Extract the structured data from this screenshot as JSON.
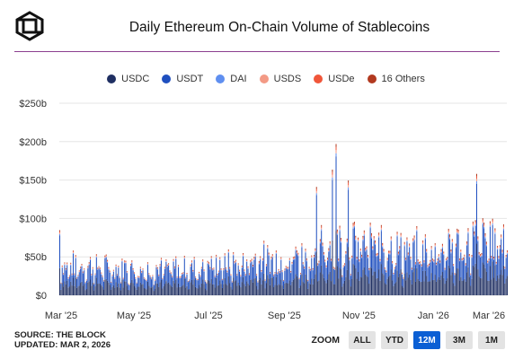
{
  "header": {
    "title": "Daily Ethereum On-Chain Volume of Stablecoins"
  },
  "legend": [
    {
      "label": "USDC",
      "color": "#1f2f62"
    },
    {
      "label": "USDT",
      "color": "#1f4fbf"
    },
    {
      "label": "DAI",
      "color": "#5f8ff0"
    },
    {
      "label": "USDS",
      "color": "#f39a85"
    },
    {
      "label": "USDe",
      "color": "#f0563a"
    },
    {
      "label": "16 Others",
      "color": "#b2391f"
    }
  ],
  "footer": {
    "source": "SOURCE: THE BLOCK",
    "updated": "UPDATED: MAR 2, 2026"
  },
  "zoom": {
    "label": "ZOOM",
    "buttons": [
      "ALL",
      "YTD",
      "12M",
      "3M",
      "1M"
    ],
    "active": "12M"
  },
  "chart_data": {
    "type": "bar",
    "stacked": true,
    "x_range": [
      "2025-03-01",
      "2026-03-02"
    ],
    "x_ticks": [
      "Mar '25",
      "May '25",
      "Jul '25",
      "Sep '25",
      "Nov '25",
      "Jan '26",
      "Mar '26"
    ],
    "y_ticks": [
      "$0",
      "$50b",
      "$100b",
      "$150b",
      "$200b",
      "$250b"
    ],
    "ylim": [
      0,
      250
    ],
    "y_unit": "billion USD",
    "grid": true,
    "legend_position": "top",
    "series_names": [
      "USDC",
      "USDT",
      "DAI",
      "USDS",
      "USDe",
      "16 Others"
    ],
    "monthly_typical_totals": [
      {
        "month": "Mar '25",
        "total": 45
      },
      {
        "month": "Apr '25",
        "total": 42
      },
      {
        "month": "May '25",
        "total": 40
      },
      {
        "month": "Jun '25",
        "total": 42
      },
      {
        "month": "Jul '25",
        "total": 48
      },
      {
        "month": "Aug '25",
        "total": 55
      },
      {
        "month": "Sep '25",
        "total": 60
      },
      {
        "month": "Oct '25",
        "total": 80
      },
      {
        "month": "Nov '25",
        "total": 78
      },
      {
        "month": "Dec '25",
        "total": 68
      },
      {
        "month": "Jan '26",
        "total": 75
      },
      {
        "month": "Feb '26",
        "total": 85
      }
    ],
    "peaks": [
      {
        "date": "2025-03-01",
        "total": 84
      },
      {
        "date": "2025-09-27",
        "total": 135
      },
      {
        "date": "2025-10-10",
        "total": 170
      },
      {
        "date": "2025-10-13",
        "total": 200
      },
      {
        "date": "2025-10-23",
        "total": 150
      },
      {
        "date": "2026-02-05",
        "total": 160
      }
    ],
    "composition_share": {
      "USDC": 0.42,
      "USDT": 0.5,
      "DAI": 0.02,
      "USDS": 0.02,
      "USDe": 0.02,
      "16 Others": 0.02
    }
  }
}
